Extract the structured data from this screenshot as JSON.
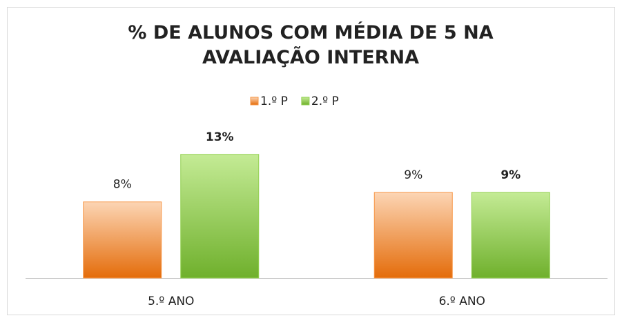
{
  "chart_data": {
    "type": "bar",
    "title": "% DE ALUNOS COM MÉDIA DE 5 NA AVALIAÇÃO INTERNA",
    "categories": [
      "5.º ANO",
      "6.º ANO"
    ],
    "series": [
      {
        "name": "1.º P",
        "color": "#f79646",
        "values": [
          8,
          9
        ],
        "value_labels": [
          "8%",
          "9%"
        ]
      },
      {
        "name": "2.º P",
        "color": "#92d050",
        "values": [
          13,
          9
        ],
        "value_labels": [
          "13%",
          "9%"
        ]
      }
    ],
    "ylim": [
      0,
      14
    ],
    "legend": "top"
  }
}
